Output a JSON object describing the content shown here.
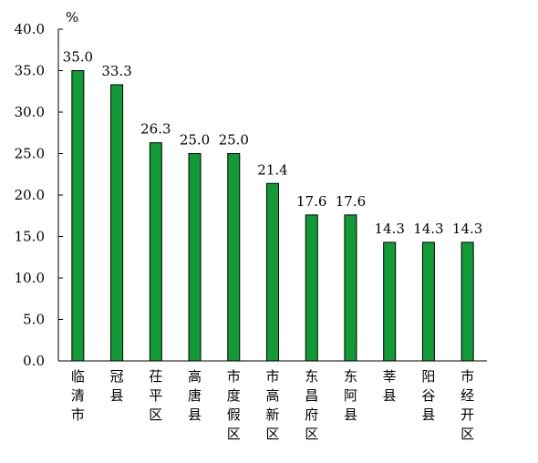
{
  "chart_data": {
    "type": "bar",
    "unit": "%",
    "categories": [
      "临清市",
      "冠县",
      "茌平区",
      "高唐县",
      "市度假区",
      "市高新区",
      "东昌府区",
      "东阿县",
      "莘县",
      "阳谷县",
      "市经开区"
    ],
    "values": [
      35.0,
      33.3,
      26.3,
      25.0,
      25.0,
      21.4,
      17.6,
      17.6,
      14.3,
      14.3,
      14.3
    ],
    "value_labels": [
      "35.0",
      "33.3",
      "26.3",
      "25.0",
      "25.0",
      "21.4",
      "17.6",
      "17.6",
      "14.3",
      "14.3",
      "14.3"
    ],
    "yticks": [
      "0.0",
      "5.0",
      "10.0",
      "15.0",
      "20.0",
      "25.0",
      "30.0",
      "35.0",
      "40.0"
    ],
    "ylim": [
      0,
      40
    ],
    "grid": false,
    "legend": "none",
    "bar_color": "#119a35",
    "bar_edge_color": "#000000"
  }
}
